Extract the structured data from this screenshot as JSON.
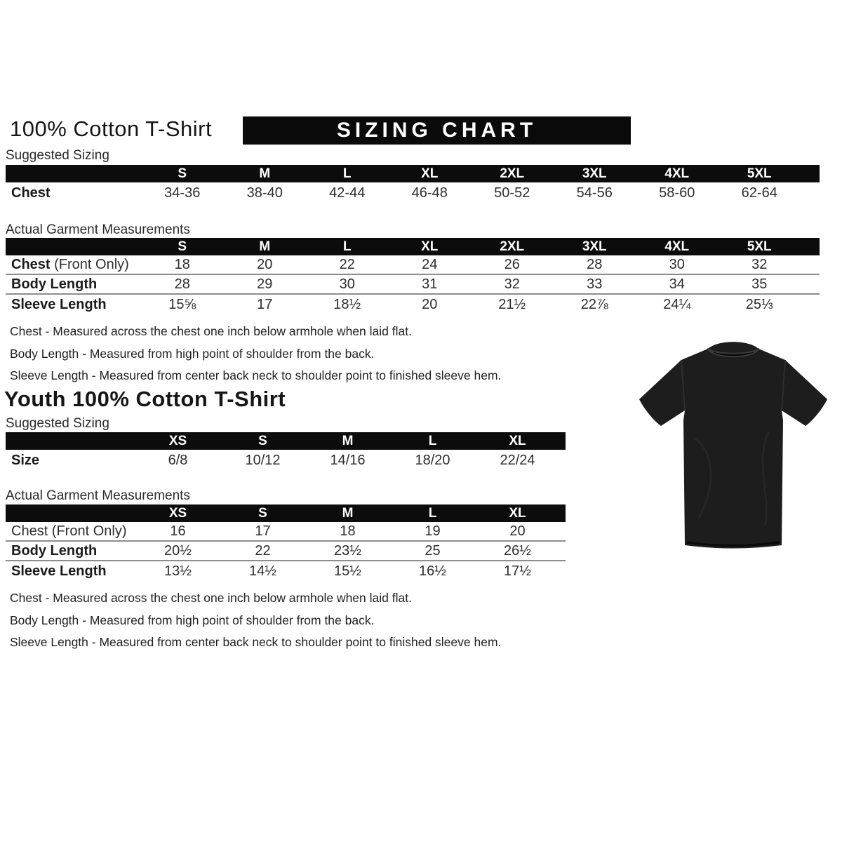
{
  "adult": {
    "title": "100% Cotton T-Shirt",
    "banner": "SIZING CHART",
    "suggested_label": "Suggested Sizing",
    "actual_label": "Actual Garment Measurements",
    "suggested_table": {
      "columns": [
        "S",
        "M",
        "L",
        "XL",
        "2XL",
        "3XL",
        "4XL",
        "5XL"
      ],
      "rows": [
        {
          "label": "Chest",
          "suffix": "",
          "bold": true,
          "values": [
            "34-36",
            "38-40",
            "42-44",
            "46-48",
            "50-52",
            "54-56",
            "58-60",
            "62-64"
          ]
        }
      ]
    },
    "actual_table": {
      "columns": [
        "S",
        "M",
        "L",
        "XL",
        "2XL",
        "3XL",
        "4XL",
        "5XL"
      ],
      "rows": [
        {
          "label": "Chest",
          "suffix": " (Front Only)",
          "bold": true,
          "values": [
            "18",
            "20",
            "22",
            "24",
            "26",
            "28",
            "30",
            "32"
          ]
        },
        {
          "label": "Body Length",
          "suffix": "",
          "bold": true,
          "values": [
            "28",
            "29",
            "30",
            "31",
            "32",
            "33",
            "34",
            "35"
          ]
        },
        {
          "label": "Sleeve Length",
          "suffix": "",
          "bold": true,
          "values": [
            "15⅝",
            "17",
            "18½",
            "20",
            "21½",
            "22⅞",
            "24¼",
            "25⅓"
          ]
        }
      ]
    },
    "notes": [
      "Chest - Measured across the chest one inch below armhole when laid flat.",
      "Body Length - Measured from high point of shoulder from the back.",
      "Sleeve Length - Measured from center back neck to shoulder point to finished sleeve hem."
    ]
  },
  "youth": {
    "title": "Youth 100% Cotton T-Shirt",
    "suggested_label": "Suggested Sizing",
    "actual_label": "Actual Garment Measurements",
    "suggested_table": {
      "columns": [
        "XS",
        "S",
        "M",
        "L",
        "XL"
      ],
      "rows": [
        {
          "label": "Size",
          "suffix": "",
          "bold": true,
          "values": [
            "6/8",
            "10/12",
            "14/16",
            "18/20",
            "22/24"
          ]
        }
      ]
    },
    "actual_table": {
      "columns": [
        "XS",
        "S",
        "M",
        "L",
        "XL"
      ],
      "rows": [
        {
          "label": "Chest (Front Only)",
          "suffix": "",
          "bold": false,
          "values": [
            "16",
            "17",
            "18",
            "19",
            "20"
          ]
        },
        {
          "label": "Body Length",
          "suffix": "",
          "bold": true,
          "values": [
            "20½",
            "22",
            "23½",
            "25",
            "26½"
          ]
        },
        {
          "label": "Sleeve Length",
          "suffix": "",
          "bold": true,
          "values": [
            "13½",
            "14½",
            "15½",
            "16½",
            "17½"
          ]
        }
      ]
    },
    "notes": [
      "Chest - Measured across the chest one inch below armhole when laid flat.",
      "Body Length - Measured from high point of shoulder from the back.",
      "Sleeve Length - Measured from center back neck to shoulder point to finished sleeve hem."
    ]
  },
  "tshirt_image": {
    "alt": "black short-sleeve t-shirt product photo",
    "color": "#1d1d1d"
  }
}
